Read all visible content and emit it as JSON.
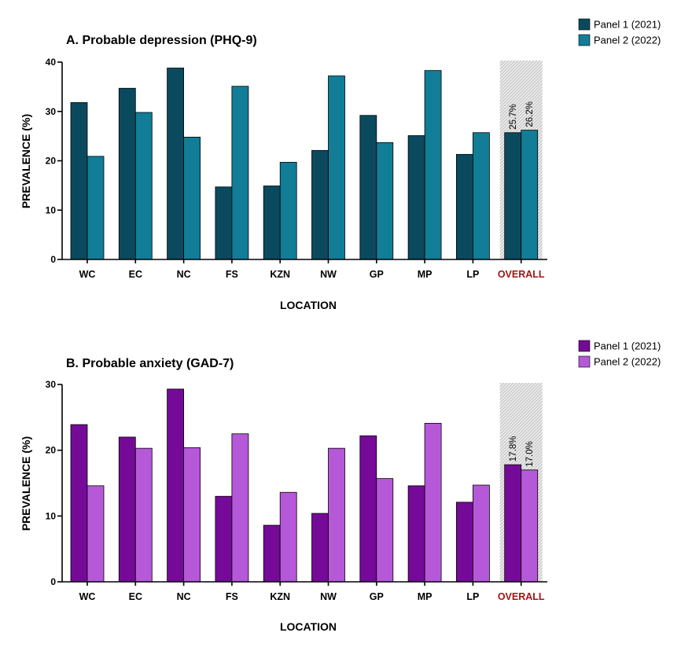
{
  "chart_data": [
    {
      "type": "bar",
      "title": "A. Probable depression (PHQ-9)",
      "xlabel": "LOCATION",
      "ylabel": "PREVALENCE (%)",
      "ylim": [
        0,
        40
      ],
      "yticks": [
        0,
        10,
        20,
        30,
        40
      ],
      "categories": [
        "WC",
        "EC",
        "NC",
        "FS",
        "KZN",
        "NW",
        "GP",
        "MP",
        "LP",
        "OVERALL"
      ],
      "highlight_category": "OVERALL",
      "highlight_color": "#a31515",
      "series": [
        {
          "name": "Panel 1 (2021)",
          "color": "#0b4a5e",
          "values": [
            31.8,
            34.7,
            38.8,
            14.7,
            14.9,
            22.1,
            29.2,
            25.1,
            21.3,
            25.7
          ]
        },
        {
          "name": "Panel 2 (2022)",
          "color": "#117d97",
          "values": [
            20.9,
            29.8,
            24.8,
            35.1,
            19.7,
            37.2,
            23.7,
            38.3,
            25.7,
            26.2
          ]
        }
      ],
      "annotations": [
        "25.7%",
        "26.2%"
      ],
      "legend": "top-right",
      "grid": false
    },
    {
      "type": "bar",
      "title": "B. Probable anxiety (GAD-7)",
      "xlabel": "LOCATION",
      "ylabel": "PREVALENCE (%)",
      "ylim": [
        0,
        30
      ],
      "yticks": [
        0,
        10,
        20,
        30
      ],
      "categories": [
        "WC",
        "EC",
        "NC",
        "FS",
        "KZN",
        "NW",
        "GP",
        "MP",
        "LP",
        "OVERALL"
      ],
      "highlight_category": "OVERALL",
      "highlight_color": "#a31515",
      "series": [
        {
          "name": "Panel 1 (2021)",
          "color": "#760a98",
          "values": [
            23.9,
            22.0,
            29.3,
            13.0,
            8.6,
            10.4,
            22.2,
            14.6,
            12.1,
            17.8
          ]
        },
        {
          "name": "Panel 2 (2022)",
          "color": "#b559d9",
          "values": [
            14.6,
            20.3,
            20.4,
            22.5,
            13.6,
            20.3,
            15.7,
            24.1,
            14.7,
            17.0
          ]
        }
      ],
      "annotations": [
        "17.8%",
        "17.0%"
      ],
      "legend": "top-right",
      "grid": false
    }
  ]
}
